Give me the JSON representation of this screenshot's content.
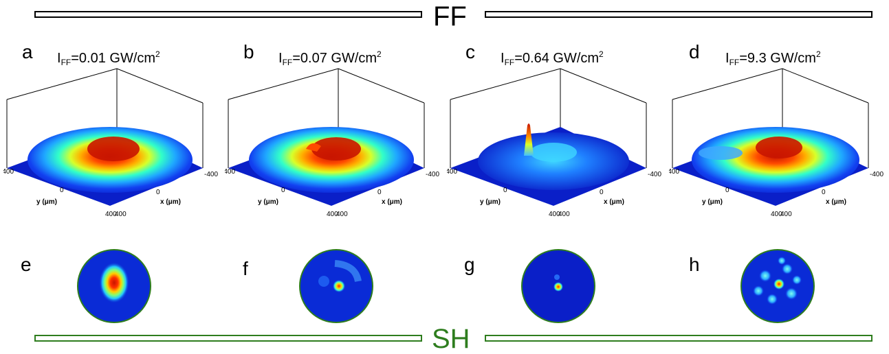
{
  "ff_banner": {
    "label": "FF"
  },
  "sh_banner": {
    "label": "SH"
  },
  "panels_3d": [
    {
      "letter": "a",
      "intensity_prefix": "I",
      "intensity_sub": "FF",
      "intensity_value": "=0.01 GW/cm",
      "intensity_sup": "2"
    },
    {
      "letter": "b",
      "intensity_prefix": "I",
      "intensity_sub": "FF",
      "intensity_value": "=0.07 GW/cm",
      "intensity_sup": "2"
    },
    {
      "letter": "c",
      "intensity_prefix": "I",
      "intensity_sub": "FF",
      "intensity_value": "=0.64 GW/cm",
      "intensity_sup": "2"
    },
    {
      "letter": "d",
      "intensity_prefix": "I",
      "intensity_sub": "FF",
      "intensity_value": "=9.3 GW/cm",
      "intensity_sup": "2"
    }
  ],
  "axes": {
    "y_label": "y (μm)",
    "x_label": "x (μm)",
    "tick_min": "-400",
    "tick_mid": "0",
    "tick_max": "400"
  },
  "panels_beam": [
    {
      "letter": "e"
    },
    {
      "letter": "f"
    },
    {
      "letter": "g"
    },
    {
      "letter": "h"
    }
  ],
  "colors": {
    "green": "#2e7d1e",
    "jet_low": "#0a2bd6",
    "jet_high": "#d21a00"
  }
}
